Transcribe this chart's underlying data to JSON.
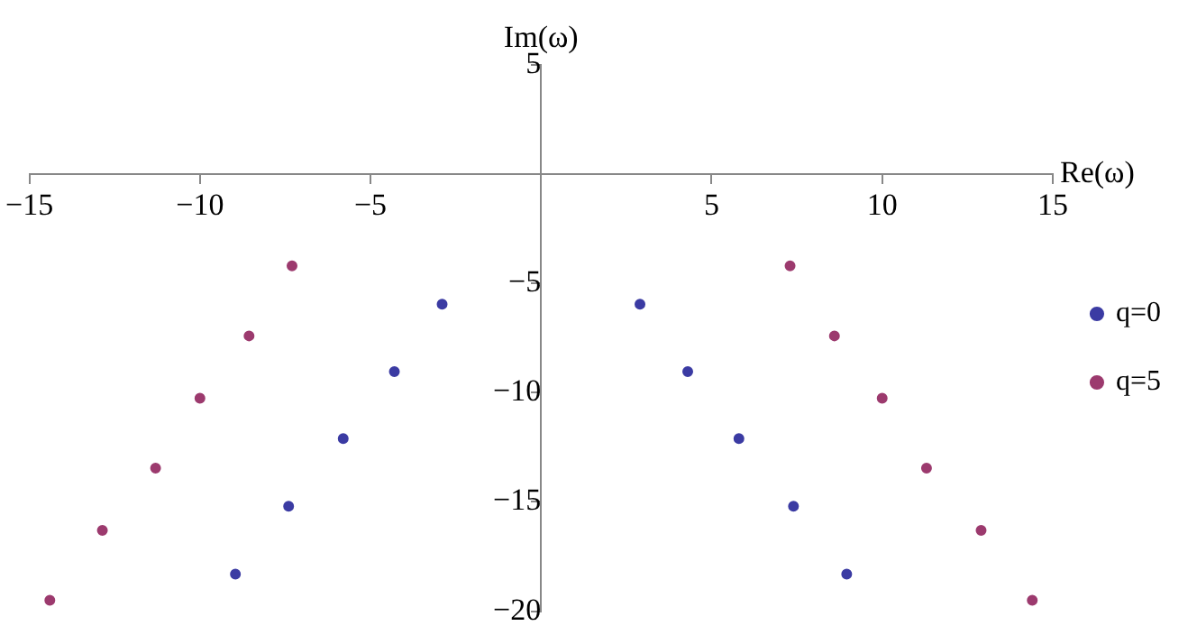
{
  "chart_data": {
    "type": "scatter",
    "xlabel": "Re(ω)",
    "ylabel": "Im(ω)",
    "xlim": [
      -15,
      15
    ],
    "ylim": [
      -20,
      5
    ],
    "xticks": [
      -15,
      -10,
      -5,
      5,
      10,
      15
    ],
    "yticks": [
      -20,
      -15,
      -10,
      -5,
      5
    ],
    "grid": false,
    "legend": "right",
    "marker": "circle",
    "series": [
      {
        "name": "q=0",
        "color": "#3b3ba3",
        "x": [
          -2.9,
          -4.3,
          -5.8,
          -7.4,
          -8.96,
          2.9,
          4.3,
          5.8,
          7.4,
          8.96
        ],
        "values": [
          -5.95,
          -9.04,
          -12.1,
          -15.2,
          -18.3,
          -5.95,
          -9.04,
          -12.1,
          -15.2,
          -18.3
        ]
      },
      {
        "name": "q=5",
        "color": "#9c3a6e",
        "x": [
          -7.3,
          -8.56,
          -10.0,
          -11.3,
          -12.86,
          -14.4,
          7.3,
          8.6,
          10.0,
          11.3,
          12.9,
          14.4
        ],
        "values": [
          -4.2,
          -7.4,
          -10.25,
          -13.45,
          -16.3,
          -19.5,
          -4.2,
          -7.4,
          -10.25,
          -13.45,
          -16.3,
          -19.5
        ]
      }
    ]
  }
}
